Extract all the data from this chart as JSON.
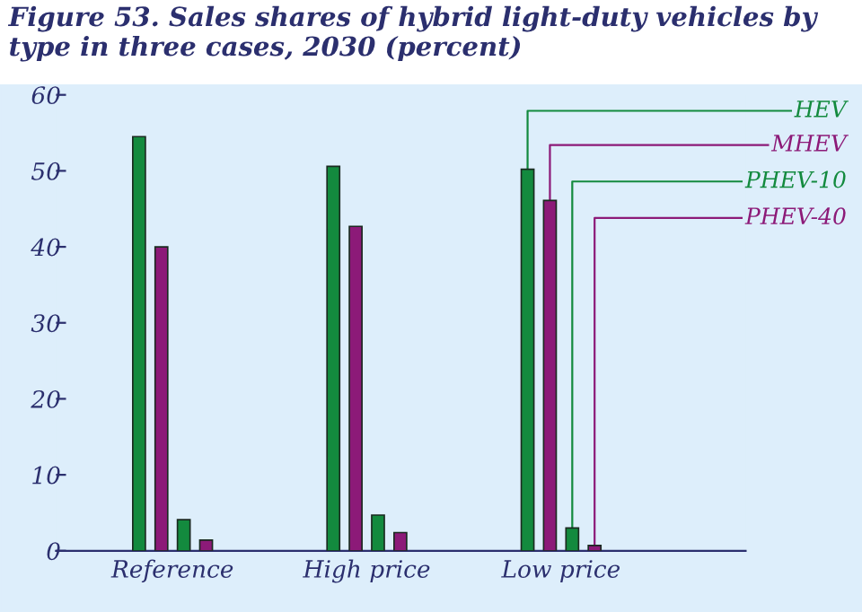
{
  "chart_data": {
    "type": "bar",
    "title": "Figure 53. Sales shares of hybrid light-duty vehicles by type in three cases, 2030 (percent)",
    "categories": [
      "Reference",
      "High price",
      "Low price"
    ],
    "series": [
      {
        "name": "HEV",
        "color": "#138a3e",
        "values": [
          54.5,
          50.6,
          50.2
        ]
      },
      {
        "name": "MHEV",
        "color": "#8c1a78",
        "values": [
          40.0,
          42.7,
          46.1
        ]
      },
      {
        "name": "PHEV-10",
        "color": "#138a3e",
        "values": [
          4.1,
          4.7,
          3.0
        ]
      },
      {
        "name": "PHEV-40",
        "color": "#8c1a78",
        "values": [
          1.4,
          2.4,
          0.7
        ]
      }
    ],
    "ylim": [
      0,
      60
    ],
    "yticks": [
      0,
      10,
      20,
      30,
      40,
      50,
      60
    ],
    "grid": false,
    "legend": "top right"
  }
}
